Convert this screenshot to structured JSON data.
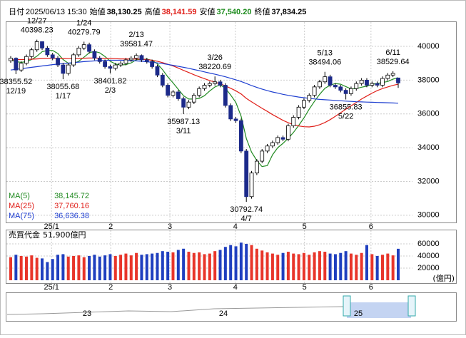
{
  "chart_data": {
    "type": "candlestick",
    "header": [
      {
        "label": "日付",
        "value": {
          "value": 0,
          "label": "2025/06/13 15:30"
        },
        "color": "#000000"
      },
      {
        "label": "始値",
        "value": {
          "value": 38130.25,
          "label": "38,130.25"
        },
        "color": "#000000"
      },
      {
        "label": "高値",
        "value": {
          "value": 38141.59,
          "label": "38,141.59"
        },
        "color": "#e0201a"
      },
      {
        "label": "安値",
        "value": {
          "value": 37540.2,
          "label": "37,540.20"
        },
        "color": "#1a8a1a"
      },
      {
        "label": "終値",
        "value": {
          "value": 37834.25,
          "label": "37,834.25"
        },
        "color": "#000000"
      }
    ],
    "ylim": [
      29570,
      41480
    ],
    "yticks": [
      30000,
      32000,
      34000,
      36000,
      38000,
      40000
    ],
    "xlim": [
      -1,
      84
    ],
    "xticks": [
      {
        "value": 7.8,
        "label": "25/1"
      },
      {
        "value": 19.1,
        "label": "2"
      },
      {
        "value": 30.4,
        "label": "3"
      },
      {
        "value": 42.9,
        "label": "4"
      },
      {
        "value": 56.1,
        "label": "5"
      },
      {
        "value": 68.8,
        "label": "6"
      }
    ],
    "grid": true,
    "up_color": "#ffffff",
    "down_color": "#1c2a8a",
    "outline_color": "#000000",
    "candles": [
      [
        39150,
        39420,
        39030,
        39300
      ],
      [
        39300,
        39350,
        38355.52,
        38600
      ],
      [
        38600,
        39120,
        38480,
        39000
      ],
      [
        39000,
        39520,
        38880,
        39400
      ],
      [
        39400,
        39920,
        39280,
        39800
      ],
      [
        39800,
        40398.23,
        39680,
        40280
      ],
      [
        40280,
        40300,
        39780,
        39900
      ],
      [
        39900,
        40020,
        39380,
        39500
      ],
      [
        39500,
        39620,
        39180,
        39300
      ],
      [
        39300,
        39420,
        38780,
        38900
      ],
      [
        38900,
        39020,
        38055.68,
        38400
      ],
      [
        38400,
        39020,
        38280,
        38900
      ],
      [
        38900,
        39620,
        38780,
        39500
      ],
      [
        39500,
        40020,
        39380,
        39900
      ],
      [
        39900,
        40279.79,
        39780,
        40100
      ],
      [
        40100,
        40220,
        39580,
        39700
      ],
      [
        39700,
        39820,
        39180,
        39300
      ],
      [
        39300,
        39420,
        38980,
        39100
      ],
      [
        39100,
        39220,
        38680,
        38800
      ],
      [
        38800,
        38920,
        38401.82,
        38700
      ],
      [
        38700,
        39020,
        38580,
        38900
      ],
      [
        38900,
        39120,
        38780,
        39000
      ],
      [
        39000,
        39320,
        38880,
        39200
      ],
      [
        39200,
        39420,
        39080,
        39300
      ],
      [
        39300,
        39581.47,
        39180,
        39460
      ],
      [
        39460,
        39520,
        39080,
        39200
      ],
      [
        39200,
        39320,
        38980,
        39100
      ],
      [
        39100,
        39220,
        38680,
        38800
      ],
      [
        38800,
        38920,
        38180,
        38300
      ],
      [
        38300,
        38420,
        37580,
        37700
      ],
      [
        37700,
        37820,
        36980,
        37100
      ],
      [
        37100,
        37420,
        36980,
        37300
      ],
      [
        37300,
        37420,
        36780,
        36900
      ],
      [
        36900,
        37020,
        35987.13,
        36400
      ],
      [
        36400,
        36820,
        36280,
        36700
      ],
      [
        36700,
        37220,
        36580,
        37100
      ],
      [
        37100,
        37620,
        36980,
        37500
      ],
      [
        37500,
        37820,
        37380,
        37700
      ],
      [
        37700,
        37920,
        37580,
        37800
      ],
      [
        37800,
        38220.69,
        37680,
        37900
      ],
      [
        37900,
        38020,
        37580,
        37700
      ],
      [
        37700,
        37820,
        36380,
        36500
      ],
      [
        36500,
        36620,
        35580,
        35700
      ],
      [
        35700,
        35820,
        35480,
        35600
      ],
      [
        35600,
        35720,
        33680,
        33800
      ],
      [
        33800,
        33920,
        30792.74,
        31100
      ],
      [
        31100,
        32620,
        30980,
        32500
      ],
      [
        32500,
        33320,
        32380,
        33200
      ],
      [
        33200,
        33920,
        33080,
        33800
      ],
      [
        33800,
        34220,
        33680,
        34100
      ],
      [
        34100,
        34420,
        33980,
        34300
      ],
      [
        34300,
        34720,
        34180,
        34600
      ],
      [
        34600,
        34720,
        34380,
        34500
      ],
      [
        34500,
        35420,
        34380,
        35300
      ],
      [
        35300,
        35920,
        35180,
        35800
      ],
      [
        35800,
        36520,
        35680,
        36400
      ],
      [
        36400,
        36920,
        36280,
        36800
      ],
      [
        36800,
        37220,
        36680,
        37100
      ],
      [
        37100,
        37720,
        36980,
        37600
      ],
      [
        37600,
        38020,
        37480,
        37900
      ],
      [
        37900,
        38494.06,
        37780,
        38200
      ],
      [
        38200,
        38320,
        37580,
        37700
      ],
      [
        37700,
        37820,
        37480,
        37600
      ],
      [
        37600,
        37720,
        37280,
        37400
      ],
      [
        37400,
        37520,
        36855.83,
        37200
      ],
      [
        37200,
        37620,
        37080,
        37500
      ],
      [
        37500,
        37920,
        37380,
        37800
      ],
      [
        37800,
        38120,
        37680,
        38000
      ],
      [
        38000,
        38120,
        37580,
        37700
      ],
      [
        37700,
        37920,
        37580,
        37800
      ],
      [
        37800,
        37920,
        37580,
        37700
      ],
      [
        37700,
        38220,
        37580,
        38100
      ],
      [
        38100,
        38420,
        37980,
        38300
      ],
      [
        38300,
        38529.64,
        38180,
        38400
      ],
      [
        38130.25,
        38141.59,
        37540.2,
        37834.25
      ]
    ],
    "annotations": [
      {
        "x": 1,
        "date": "12/19",
        "value": 38355.52,
        "side": "low"
      },
      {
        "x": 5,
        "date": "12/27",
        "value": 40398.23,
        "side": "high"
      },
      {
        "x": 10,
        "date": "1/17",
        "value": 38055.68,
        "side": "low"
      },
      {
        "x": 14,
        "date": "1/24",
        "value": 40279.79,
        "side": "high"
      },
      {
        "x": 19,
        "date": "2/3",
        "value": 38401.82,
        "side": "low"
      },
      {
        "x": 24,
        "date": "2/13",
        "value": 39581.47,
        "side": "high"
      },
      {
        "x": 33,
        "date": "3/11",
        "value": 35987.13,
        "side": "low"
      },
      {
        "x": 39,
        "date": "3/26",
        "value": 38220.69,
        "side": "high"
      },
      {
        "x": 45,
        "date": "4/7",
        "value": 30792.74,
        "side": "low"
      },
      {
        "x": 60,
        "date": "5/13",
        "value": 38494.06,
        "side": "high"
      },
      {
        "x": 64,
        "date": "5/22",
        "value": 36855.83,
        "side": "low"
      },
      {
        "x": 73,
        "date": "6/11",
        "value": 38529.64,
        "side": "high"
      }
    ],
    "series": [
      {
        "name": "MA(5)",
        "color": "#228b22",
        "latest": {
          "value": 38145.72,
          "label": "38,145.72"
        },
        "values": [
          39200,
          39100,
          39050,
          39100,
          39220,
          39420,
          39680,
          39760,
          39760,
          39580,
          39220,
          39000,
          39000,
          39120,
          39360,
          39620,
          39700,
          39620,
          39400,
          39120,
          38960,
          38900,
          38920,
          39020,
          39210,
          39230,
          39250,
          39170,
          38970,
          38620,
          38200,
          37840,
          37460,
          37080,
          36880,
          36880,
          36920,
          37080,
          37360,
          37600,
          37720,
          37520,
          37120,
          36680,
          35860,
          34540,
          33740,
          33240,
          32880,
          32940,
          33580,
          34000,
          34260,
          34560,
          34900,
          35320,
          35760,
          36280,
          36740,
          37160,
          37520,
          37700,
          37800,
          37760,
          37620,
          37480,
          37500,
          37580,
          37640,
          37760,
          37800,
          37860,
          37920,
          38060,
          38145.72
        ]
      },
      {
        "name": "MA(25)",
        "color": "#e0201a",
        "latest": {
          "value": 37760.16,
          "label": "37,760.16"
        },
        "values": [
          39200,
          39210,
          39220,
          39230,
          39240,
          39260,
          39280,
          39290,
          39300,
          39290,
          39280,
          39270,
          39270,
          39280,
          39300,
          39310,
          39310,
          39300,
          39290,
          39280,
          39270,
          39260,
          39260,
          39250,
          39250,
          39240,
          39220,
          39180,
          39120,
          39040,
          38940,
          38840,
          38720,
          38580,
          38450,
          38320,
          38200,
          38090,
          37980,
          37880,
          37780,
          37660,
          37520,
          37370,
          37180,
          36920,
          36720,
          36520,
          36330,
          36150,
          35960,
          35790,
          35620,
          35480,
          35370,
          35290,
          35240,
          35230,
          35270,
          35360,
          35490,
          35660,
          35860,
          36070,
          36280,
          36480,
          36680,
          36880,
          37060,
          37230,
          37380,
          37500,
          37600,
          37690,
          37760.16
        ]
      },
      {
        "name": "MA(75)",
        "color": "#1f3fd0",
        "latest": {
          "value": 36636.38,
          "label": "36,636.38"
        },
        "values": [
          38600,
          38640,
          38680,
          38720,
          38760,
          38800,
          38840,
          38880,
          38920,
          38950,
          38980,
          39010,
          39040,
          39070,
          39100,
          39120,
          39140,
          39160,
          39170,
          39180,
          39180,
          39180,
          39170,
          39160,
          39140,
          39120,
          39090,
          39060,
          39020,
          38980,
          38930,
          38880,
          38820,
          38760,
          38700,
          38630,
          38560,
          38490,
          38420,
          38350,
          38280,
          38200,
          38110,
          38020,
          37920,
          37800,
          37680,
          37570,
          37470,
          37380,
          37300,
          37230,
          37160,
          37100,
          37050,
          37000,
          36960,
          36920,
          36890,
          36860,
          36840,
          36820,
          36800,
          36780,
          36760,
          36740,
          36720,
          36710,
          36700,
          36690,
          36680,
          36670,
          36660,
          36650,
          36636.38
        ]
      }
    ],
    "volume": {
      "title": "売買代金",
      "latest": {
        "value": 51900,
        "label": "51,900億円"
      },
      "unit": "(億円)",
      "ylim": [
        0,
        83500
      ],
      "yticks": [
        20000,
        40000,
        60000
      ],
      "up_color": "#e8352a",
      "down_color": "#1f3fbf",
      "values": [
        38000,
        42000,
        40000,
        39000,
        41000,
        37000,
        36000,
        30000,
        35000,
        42000,
        43000,
        39000,
        40000,
        41000,
        38000,
        40000,
        42000,
        39000,
        41000,
        43000,
        40000,
        42000,
        44000,
        41000,
        45000,
        42000,
        43000,
        44000,
        45000,
        48000,
        47000,
        46000,
        50000,
        52000,
        47000,
        45000,
        46000,
        43000,
        44000,
        48000,
        50000,
        55000,
        58000,
        56000,
        62000,
        60000,
        58000,
        52000,
        49000,
        46000,
        44000,
        42000,
        45000,
        47000,
        44000,
        43000,
        45000,
        42000,
        46000,
        48000,
        47000,
        44000,
        43000,
        45000,
        48000,
        44000,
        42000,
        45000,
        58000,
        43000,
        40000,
        42000,
        44000,
        41000,
        51900
      ]
    },
    "navigator": {
      "labels": [
        "23",
        "24",
        "25"
      ]
    }
  }
}
